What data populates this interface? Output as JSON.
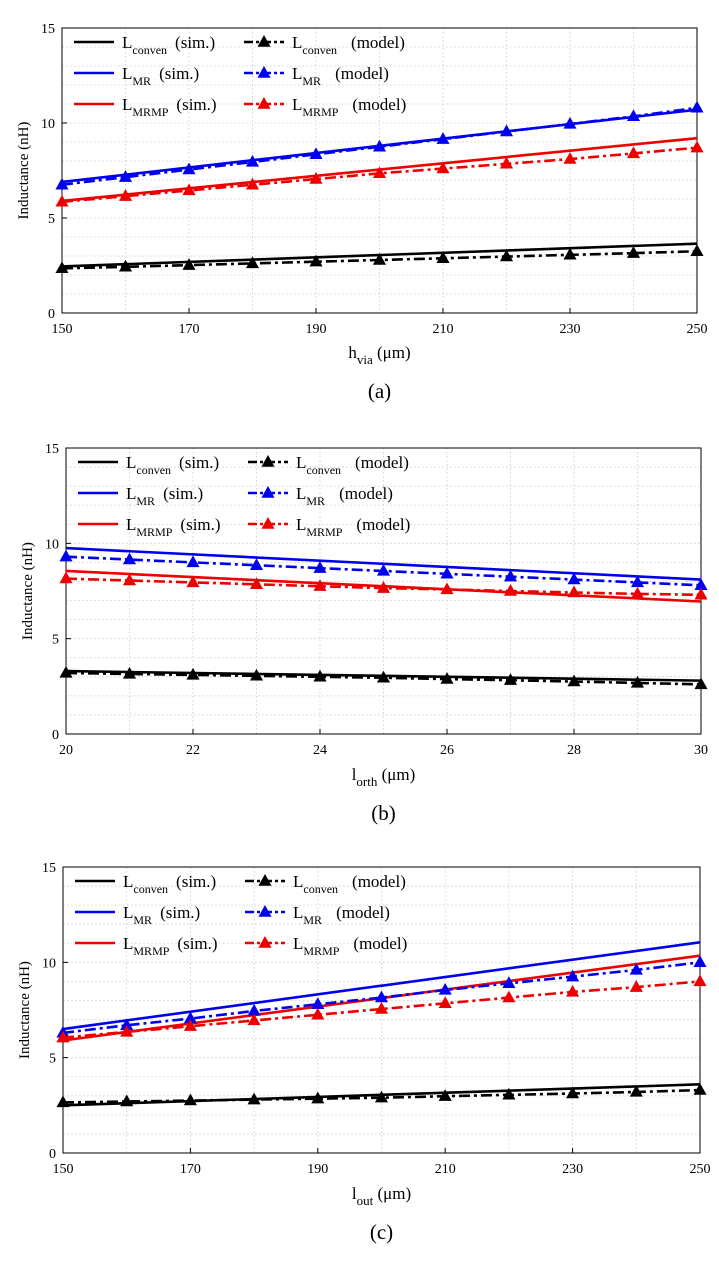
{
  "colors": {
    "conven": "#000000",
    "MR": "#0000ee",
    "MRMP": "#ee0000",
    "grid": "#c8c8c8"
  },
  "chart_data": [
    {
      "type": "line",
      "panel_label": "(a)",
      "xlabel_main": "h",
      "xlabel_sub": "via",
      "xlabel_unit": " (μm)",
      "ylabel": "Inductance (nH)",
      "xlim": [
        150,
        250
      ],
      "ylim": [
        0,
        15
      ],
      "xticks": [
        150,
        170,
        190,
        210,
        230,
        250
      ],
      "yticks": [
        0,
        5,
        10,
        15
      ],
      "grid": true,
      "legend_position": "top-left",
      "series": [
        {
          "name_main": "L",
          "name_sub": "conven",
          "name_tag": "(sim.)",
          "color_key": "conven",
          "style": "solid",
          "x": [
            150,
            250
          ],
          "y": [
            2.45,
            3.65
          ]
        },
        {
          "name_main": "L",
          "name_sub": "MR",
          "name_tag": "(sim.)",
          "color_key": "MR",
          "style": "solid",
          "x": [
            150,
            250
          ],
          "y": [
            6.9,
            10.7
          ]
        },
        {
          "name_main": "L",
          "name_sub": "MRMP",
          "name_tag": "(sim.)",
          "color_key": "MRMP",
          "style": "solid",
          "x": [
            150,
            250
          ],
          "y": [
            5.9,
            9.2
          ]
        },
        {
          "name_main": "L",
          "name_sub": "conven",
          "name_tag": "(model)",
          "color_key": "conven",
          "style": "dashdot",
          "x": [
            150,
            160,
            170,
            180,
            190,
            200,
            210,
            220,
            230,
            240,
            250
          ],
          "y": [
            2.35,
            2.43,
            2.52,
            2.61,
            2.7,
            2.79,
            2.88,
            2.97,
            3.06,
            3.15,
            3.25
          ]
        },
        {
          "name_main": "L",
          "name_sub": "MR",
          "name_tag": "(model)",
          "color_key": "MR",
          "style": "dashdot",
          "x": [
            150,
            160,
            170,
            180,
            190,
            200,
            210,
            220,
            230,
            240,
            250
          ],
          "y": [
            6.75,
            7.15,
            7.55,
            7.95,
            8.35,
            8.75,
            9.15,
            9.55,
            9.95,
            10.35,
            10.8
          ]
        },
        {
          "name_main": "L",
          "name_sub": "MRMP",
          "name_tag": "(model)",
          "color_key": "MRMP",
          "style": "dashdot",
          "x": [
            150,
            160,
            170,
            180,
            190,
            200,
            210,
            220,
            230,
            240,
            250
          ],
          "y": [
            5.85,
            6.15,
            6.45,
            6.75,
            7.05,
            7.35,
            7.6,
            7.85,
            8.1,
            8.4,
            8.7
          ]
        }
      ]
    },
    {
      "type": "line",
      "panel_label": "(b)",
      "xlabel_main": "l",
      "xlabel_sub": "orth",
      "xlabel_unit": " (μm)",
      "ylabel": "Inductance (nH)",
      "xlim": [
        20,
        30
      ],
      "ylim": [
        0,
        15
      ],
      "xticks": [
        20,
        22,
        24,
        26,
        28,
        30
      ],
      "yticks": [
        0,
        5,
        10,
        15
      ],
      "grid": true,
      "legend_position": "top-left",
      "series": [
        {
          "name_main": "L",
          "name_sub": "conven",
          "name_tag": "(sim.)",
          "color_key": "conven",
          "style": "solid",
          "x": [
            20,
            30
          ],
          "y": [
            3.3,
            2.8
          ]
        },
        {
          "name_main": "L",
          "name_sub": "MR",
          "name_tag": "(sim.)",
          "color_key": "MR",
          "style": "solid",
          "x": [
            20,
            30
          ],
          "y": [
            9.75,
            8.1
          ]
        },
        {
          "name_main": "L",
          "name_sub": "MRMP",
          "name_tag": "(sim.)",
          "color_key": "MRMP",
          "style": "solid",
          "x": [
            20,
            30
          ],
          "y": [
            8.55,
            6.95
          ]
        },
        {
          "name_main": "L",
          "name_sub": "conven",
          "name_tag": "(model)",
          "color_key": "conven",
          "style": "dashdot",
          "x": [
            20,
            21,
            22,
            23,
            24,
            25,
            26,
            27,
            28,
            29,
            30
          ],
          "y": [
            3.2,
            3.15,
            3.1,
            3.05,
            3.0,
            2.95,
            2.88,
            2.82,
            2.75,
            2.68,
            2.6
          ]
        },
        {
          "name_main": "L",
          "name_sub": "MR",
          "name_tag": "(model)",
          "color_key": "MR",
          "style": "dashdot",
          "x": [
            20,
            21,
            22,
            23,
            24,
            25,
            26,
            27,
            28,
            29,
            30
          ],
          "y": [
            9.3,
            9.15,
            9.0,
            8.85,
            8.7,
            8.55,
            8.4,
            8.25,
            8.1,
            7.95,
            7.8
          ]
        },
        {
          "name_main": "L",
          "name_sub": "MRMP",
          "name_tag": "(model)",
          "color_key": "MRMP",
          "style": "dashdot",
          "x": [
            20,
            21,
            22,
            23,
            24,
            25,
            26,
            27,
            28,
            29,
            30
          ],
          "y": [
            8.15,
            8.05,
            7.95,
            7.85,
            7.75,
            7.65,
            7.58,
            7.5,
            7.42,
            7.35,
            7.3
          ]
        }
      ]
    },
    {
      "type": "line",
      "panel_label": "(c)",
      "xlabel_main": "l",
      "xlabel_sub": "out",
      "xlabel_unit": " (μm)",
      "ylabel": "Inductance (nH)",
      "xlim": [
        150,
        250
      ],
      "ylim": [
        0,
        15
      ],
      "xticks": [
        150,
        170,
        190,
        210,
        230,
        250
      ],
      "yticks": [
        0,
        5,
        10,
        15
      ],
      "grid": true,
      "legend_position": "top-left",
      "series": [
        {
          "name_main": "L",
          "name_sub": "conven",
          "name_tag": "(sim.)",
          "color_key": "conven",
          "style": "solid",
          "x": [
            150,
            250
          ],
          "y": [
            2.5,
            3.6
          ]
        },
        {
          "name_main": "L",
          "name_sub": "MR",
          "name_tag": "(sim.)",
          "color_key": "MR",
          "style": "solid",
          "x": [
            150,
            250
          ],
          "y": [
            6.5,
            11.05
          ]
        },
        {
          "name_main": "L",
          "name_sub": "MRMP",
          "name_tag": "(sim.)",
          "color_key": "MRMP",
          "style": "solid",
          "x": [
            150,
            250
          ],
          "y": [
            5.9,
            10.35
          ]
        },
        {
          "name_main": "L",
          "name_sub": "conven",
          "name_tag": "(model)",
          "color_key": "conven",
          "style": "dashdot",
          "x": [
            150,
            160,
            170,
            180,
            190,
            200,
            210,
            220,
            230,
            240,
            250
          ],
          "y": [
            2.65,
            2.7,
            2.75,
            2.8,
            2.85,
            2.9,
            2.98,
            3.05,
            3.12,
            3.2,
            3.3
          ]
        },
        {
          "name_main": "L",
          "name_sub": "MR",
          "name_tag": "(model)",
          "color_key": "MR",
          "style": "dashdot",
          "x": [
            150,
            160,
            170,
            180,
            190,
            200,
            210,
            220,
            230,
            240,
            250
          ],
          "y": [
            6.3,
            6.7,
            7.05,
            7.45,
            7.8,
            8.15,
            8.55,
            8.9,
            9.25,
            9.6,
            10.0
          ]
        },
        {
          "name_main": "L",
          "name_sub": "MRMP",
          "name_tag": "(model)",
          "color_key": "MRMP",
          "style": "dashdot",
          "x": [
            150,
            160,
            170,
            180,
            190,
            200,
            210,
            220,
            230,
            240,
            250
          ],
          "y": [
            6.05,
            6.35,
            6.65,
            6.95,
            7.25,
            7.55,
            7.85,
            8.15,
            8.45,
            8.7,
            9.0
          ]
        }
      ]
    }
  ]
}
